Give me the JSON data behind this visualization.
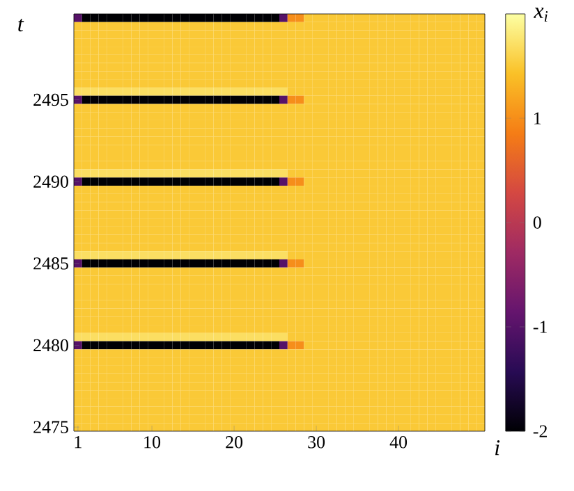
{
  "chart_data": {
    "type": "heatmap",
    "xlabel": "i",
    "ylabel": "t",
    "clabel": "x$_{i}$",
    "clim": [
      -2,
      2
    ],
    "cticks": [
      -2,
      -1,
      0,
      1
    ],
    "categories": [
      "1",
      null,
      null,
      null,
      null,
      null,
      null,
      null,
      null,
      "10",
      null,
      null,
      null,
      null,
      null,
      null,
      null,
      null,
      null,
      "20",
      null,
      null,
      null,
      null,
      null,
      null,
      null,
      null,
      null,
      "30",
      null,
      null,
      null,
      null,
      null,
      null,
      null,
      null,
      null,
      "40",
      null,
      null,
      null,
      null,
      null,
      null,
      null,
      null,
      null,
      null
    ],
    "y_categories": [
      null,
      null,
      null,
      null,
      null,
      null,
      null,
      null,
      null,
      null,
      "2495",
      null,
      null,
      null,
      null,
      null,
      null,
      null,
      null,
      null,
      "2490",
      null,
      null,
      null,
      null,
      null,
      null,
      null,
      null,
      null,
      "2485",
      null,
      null,
      null,
      null,
      null,
      null,
      null,
      null,
      null,
      "2480",
      null,
      null,
      null,
      null,
      null,
      null,
      null,
      null,
      null,
      "2475"
    ],
    "cells": [
      [
        -1,
        -2,
        -2,
        -2,
        -2,
        -2,
        -2,
        -2,
        -2,
        -2,
        -2,
        -2,
        -2,
        -2,
        -2,
        -2,
        -2,
        -2,
        -2,
        -2,
        -2,
        -2,
        -2,
        -2,
        -2,
        -1,
        1.0,
        1.0,
        1.5,
        1.5,
        1.5,
        1.5,
        1.5,
        1.5,
        1.5,
        1.5,
        1.5,
        1.5,
        1.5,
        1.5,
        1.5,
        1.5,
        1.5,
        1.5,
        1.5,
        1.5,
        1.5,
        1.5,
        1.5,
        1.5
      ],
      [
        1.5,
        1.5,
        1.5,
        1.5,
        1.5,
        1.5,
        1.5,
        1.5,
        1.5,
        1.5,
        1.5,
        1.5,
        1.5,
        1.5,
        1.5,
        1.5,
        1.5,
        1.5,
        1.5,
        1.5,
        1.5,
        1.5,
        1.5,
        1.5,
        1.5,
        1.5,
        1.5,
        1.5,
        1.5,
        1.5,
        1.5,
        1.5,
        1.5,
        1.5,
        1.5,
        1.5,
        1.5,
        1.5,
        1.5,
        1.5,
        1.5,
        1.5,
        1.5,
        1.5,
        1.5,
        1.5,
        1.5,
        1.5,
        1.5,
        1.5
      ],
      [
        1.5,
        1.5,
        1.5,
        1.5,
        1.5,
        1.5,
        1.5,
        1.5,
        1.5,
        1.5,
        1.5,
        1.5,
        1.5,
        1.5,
        1.5,
        1.5,
        1.5,
        1.5,
        1.5,
        1.5,
        1.5,
        1.5,
        1.5,
        1.5,
        1.5,
        1.5,
        1.5,
        1.5,
        1.5,
        1.5,
        1.5,
        1.5,
        1.5,
        1.5,
        1.5,
        1.5,
        1.5,
        1.5,
        1.5,
        1.5,
        1.5,
        1.5,
        1.5,
        1.5,
        1.5,
        1.5,
        1.5,
        1.5,
        1.5,
        1.5
      ],
      [
        1.5,
        1.5,
        1.5,
        1.5,
        1.5,
        1.5,
        1.5,
        1.5,
        1.5,
        1.5,
        1.5,
        1.5,
        1.5,
        1.5,
        1.5,
        1.5,
        1.5,
        1.5,
        1.5,
        1.5,
        1.5,
        1.5,
        1.5,
        1.5,
        1.5,
        1.5,
        1.5,
        1.5,
        1.5,
        1.5,
        1.5,
        1.5,
        1.5,
        1.5,
        1.5,
        1.5,
        1.5,
        1.5,
        1.5,
        1.5,
        1.5,
        1.5,
        1.5,
        1.5,
        1.5,
        1.5,
        1.5,
        1.5,
        1.5,
        1.5
      ],
      [
        1.5,
        1.5,
        1.5,
        1.5,
        1.5,
        1.5,
        1.5,
        1.5,
        1.5,
        1.5,
        1.5,
        1.5,
        1.5,
        1.5,
        1.5,
        1.5,
        1.5,
        1.5,
        1.5,
        1.5,
        1.5,
        1.5,
        1.5,
        1.5,
        1.5,
        1.5,
        1.5,
        1.5,
        1.5,
        1.5,
        1.5,
        1.5,
        1.5,
        1.5,
        1.5,
        1.5,
        1.5,
        1.5,
        1.5,
        1.5,
        1.5,
        1.5,
        1.5,
        1.5,
        1.5,
        1.5,
        1.5,
        1.5,
        1.5,
        1.5
      ],
      [
        1.5,
        1.5,
        1.5,
        1.5,
        1.5,
        1.5,
        1.5,
        1.5,
        1.5,
        1.5,
        1.5,
        1.5,
        1.5,
        1.5,
        1.5,
        1.5,
        1.5,
        1.5,
        1.5,
        1.5,
        1.5,
        1.5,
        1.5,
        1.5,
        1.5,
        1.5,
        1.5,
        1.5,
        1.5,
        1.5,
        1.5,
        1.5,
        1.5,
        1.5,
        1.5,
        1.5,
        1.5,
        1.5,
        1.5,
        1.5,
        1.5,
        1.5,
        1.5,
        1.5,
        1.5,
        1.5,
        1.5,
        1.5,
        1.5,
        1.5
      ],
      [
        1.5,
        1.5,
        1.5,
        1.5,
        1.5,
        1.5,
        1.5,
        1.5,
        1.5,
        1.5,
        1.5,
        1.5,
        1.5,
        1.5,
        1.5,
        1.5,
        1.5,
        1.5,
        1.5,
        1.5,
        1.5,
        1.5,
        1.5,
        1.5,
        1.5,
        1.5,
        1.5,
        1.5,
        1.5,
        1.5,
        1.5,
        1.5,
        1.5,
        1.5,
        1.5,
        1.5,
        1.5,
        1.5,
        1.5,
        1.5,
        1.5,
        1.5,
        1.5,
        1.5,
        1.5,
        1.5,
        1.5,
        1.5,
        1.5,
        1.5
      ],
      [
        1.5,
        1.5,
        1.5,
        1.5,
        1.5,
        1.5,
        1.5,
        1.5,
        1.5,
        1.5,
        1.5,
        1.5,
        1.5,
        1.5,
        1.5,
        1.5,
        1.5,
        1.5,
        1.5,
        1.5,
        1.5,
        1.5,
        1.5,
        1.5,
        1.5,
        1.5,
        1.5,
        1.5,
        1.5,
        1.5,
        1.5,
        1.5,
        1.5,
        1.5,
        1.5,
        1.5,
        1.5,
        1.5,
        1.5,
        1.5,
        1.5,
        1.5,
        1.5,
        1.5,
        1.5,
        1.5,
        1.5,
        1.5,
        1.5,
        1.5
      ],
      [
        1.5,
        1.5,
        1.5,
        1.5,
        1.5,
        1.5,
        1.5,
        1.5,
        1.5,
        1.5,
        1.5,
        1.5,
        1.5,
        1.5,
        1.5,
        1.5,
        1.5,
        1.5,
        1.5,
        1.5,
        1.5,
        1.5,
        1.5,
        1.5,
        1.5,
        1.5,
        1.5,
        1.5,
        1.5,
        1.5,
        1.5,
        1.5,
        1.5,
        1.5,
        1.5,
        1.5,
        1.5,
        1.5,
        1.5,
        1.5,
        1.5,
        1.5,
        1.5,
        1.5,
        1.5,
        1.5,
        1.5,
        1.5,
        1.5,
        1.5
      ],
      [
        1.7,
        1.7,
        1.7,
        1.7,
        1.7,
        1.7,
        1.7,
        1.7,
        1.7,
        1.7,
        1.7,
        1.7,
        1.7,
        1.7,
        1.7,
        1.7,
        1.7,
        1.7,
        1.7,
        1.7,
        1.7,
        1.7,
        1.7,
        1.7,
        1.7,
        1.7,
        1.5,
        1.5,
        1.5,
        1.5,
        1.5,
        1.5,
        1.5,
        1.5,
        1.5,
        1.5,
        1.5,
        1.5,
        1.5,
        1.5,
        1.5,
        1.5,
        1.5,
        1.5,
        1.5,
        1.5,
        1.5,
        1.5,
        1.5,
        1.5
      ],
      [
        -1,
        -2,
        -2,
        -2,
        -2,
        -2,
        -2,
        -2,
        -2,
        -2,
        -2,
        -2,
        -2,
        -2,
        -2,
        -2,
        -2,
        -2,
        -2,
        -2,
        -2,
        -2,
        -2,
        -2,
        -2,
        -1,
        1.0,
        1.0,
        1.5,
        1.5,
        1.5,
        1.5,
        1.5,
        1.5,
        1.5,
        1.5,
        1.5,
        1.5,
        1.5,
        1.5,
        1.5,
        1.5,
        1.5,
        1.5,
        1.5,
        1.5,
        1.5,
        1.5,
        1.5,
        1.5
      ],
      [
        1.5,
        1.5,
        1.5,
        1.5,
        1.5,
        1.5,
        1.5,
        1.5,
        1.5,
        1.5,
        1.5,
        1.5,
        1.5,
        1.5,
        1.5,
        1.5,
        1.5,
        1.5,
        1.5,
        1.5,
        1.5,
        1.5,
        1.5,
        1.5,
        1.5,
        1.5,
        1.5,
        1.5,
        1.5,
        1.5,
        1.5,
        1.5,
        1.5,
        1.5,
        1.5,
        1.5,
        1.5,
        1.5,
        1.5,
        1.5,
        1.5,
        1.5,
        1.5,
        1.5,
        1.5,
        1.5,
        1.5,
        1.5,
        1.5,
        1.5
      ],
      [
        1.5,
        1.5,
        1.5,
        1.5,
        1.5,
        1.5,
        1.5,
        1.5,
        1.5,
        1.5,
        1.5,
        1.5,
        1.5,
        1.5,
        1.5,
        1.5,
        1.5,
        1.5,
        1.5,
        1.5,
        1.5,
        1.5,
        1.5,
        1.5,
        1.5,
        1.5,
        1.5,
        1.5,
        1.5,
        1.5,
        1.5,
        1.5,
        1.5,
        1.5,
        1.5,
        1.5,
        1.5,
        1.5,
        1.5,
        1.5,
        1.5,
        1.5,
        1.5,
        1.5,
        1.5,
        1.5,
        1.5,
        1.5,
        1.5,
        1.5
      ],
      [
        1.5,
        1.5,
        1.5,
        1.5,
        1.5,
        1.5,
        1.5,
        1.5,
        1.5,
        1.5,
        1.5,
        1.5,
        1.5,
        1.5,
        1.5,
        1.5,
        1.5,
        1.5,
        1.5,
        1.5,
        1.5,
        1.5,
        1.5,
        1.5,
        1.5,
        1.5,
        1.5,
        1.5,
        1.5,
        1.5,
        1.5,
        1.5,
        1.5,
        1.5,
        1.5,
        1.5,
        1.5,
        1.5,
        1.5,
        1.5,
        1.5,
        1.5,
        1.5,
        1.5,
        1.5,
        1.5,
        1.5,
        1.5,
        1.5,
        1.5
      ],
      [
        1.5,
        1.5,
        1.5,
        1.5,
        1.5,
        1.5,
        1.5,
        1.5,
        1.5,
        1.5,
        1.5,
        1.5,
        1.5,
        1.5,
        1.5,
        1.5,
        1.5,
        1.5,
        1.5,
        1.5,
        1.5,
        1.5,
        1.5,
        1.5,
        1.5,
        1.5,
        1.5,
        1.5,
        1.5,
        1.5,
        1.5,
        1.5,
        1.5,
        1.5,
        1.5,
        1.5,
        1.5,
        1.5,
        1.5,
        1.5,
        1.5,
        1.5,
        1.5,
        1.5,
        1.5,
        1.5,
        1.5,
        1.5,
        1.5,
        1.5
      ],
      [
        1.5,
        1.5,
        1.5,
        1.5,
        1.5,
        1.5,
        1.5,
        1.5,
        1.5,
        1.5,
        1.5,
        1.5,
        1.5,
        1.5,
        1.5,
        1.5,
        1.5,
        1.5,
        1.5,
        1.5,
        1.5,
        1.5,
        1.5,
        1.5,
        1.5,
        1.5,
        1.5,
        1.5,
        1.5,
        1.5,
        1.5,
        1.5,
        1.5,
        1.5,
        1.5,
        1.5,
        1.5,
        1.5,
        1.5,
        1.5,
        1.5,
        1.5,
        1.5,
        1.5,
        1.5,
        1.5,
        1.5,
        1.5,
        1.5,
        1.5
      ],
      [
        1.5,
        1.5,
        1.5,
        1.5,
        1.5,
        1.5,
        1.5,
        1.5,
        1.5,
        1.5,
        1.5,
        1.5,
        1.5,
        1.5,
        1.5,
        1.5,
        1.5,
        1.5,
        1.5,
        1.5,
        1.5,
        1.5,
        1.5,
        1.5,
        1.5,
        1.5,
        1.5,
        1.5,
        1.5,
        1.5,
        1.5,
        1.5,
        1.5,
        1.5,
        1.5,
        1.5,
        1.5,
        1.5,
        1.5,
        1.5,
        1.5,
        1.5,
        1.5,
        1.5,
        1.5,
        1.5,
        1.5,
        1.5,
        1.5,
        1.5
      ],
      [
        1.5,
        1.5,
        1.5,
        1.5,
        1.5,
        1.5,
        1.5,
        1.5,
        1.5,
        1.5,
        1.5,
        1.5,
        1.5,
        1.5,
        1.5,
        1.5,
        1.5,
        1.5,
        1.5,
        1.5,
        1.5,
        1.5,
        1.5,
        1.5,
        1.5,
        1.5,
        1.5,
        1.5,
        1.5,
        1.5,
        1.5,
        1.5,
        1.5,
        1.5,
        1.5,
        1.5,
        1.5,
        1.5,
        1.5,
        1.5,
        1.5,
        1.5,
        1.5,
        1.5,
        1.5,
        1.5,
        1.5,
        1.5,
        1.5,
        1.5
      ],
      [
        1.5,
        1.5,
        1.5,
        1.5,
        1.5,
        1.5,
        1.5,
        1.5,
        1.5,
        1.5,
        1.5,
        1.5,
        1.5,
        1.5,
        1.5,
        1.5,
        1.5,
        1.5,
        1.5,
        1.5,
        1.5,
        1.5,
        1.5,
        1.5,
        1.5,
        1.5,
        1.5,
        1.5,
        1.5,
        1.5,
        1.5,
        1.5,
        1.5,
        1.5,
        1.5,
        1.5,
        1.5,
        1.5,
        1.5,
        1.5,
        1.5,
        1.5,
        1.5,
        1.5,
        1.5,
        1.5,
        1.5,
        1.5,
        1.5,
        1.5
      ],
      [
        1.7,
        1.7,
        1.7,
        1.7,
        1.7,
        1.7,
        1.7,
        1.7,
        1.7,
        1.7,
        1.7,
        1.7,
        1.7,
        1.7,
        1.7,
        1.7,
        1.7,
        1.7,
        1.7,
        1.7,
        1.7,
        1.7,
        1.7,
        1.7,
        1.7,
        1.7,
        1.5,
        1.5,
        1.5,
        1.5,
        1.5,
        1.5,
        1.5,
        1.5,
        1.5,
        1.5,
        1.5,
        1.5,
        1.5,
        1.5,
        1.5,
        1.5,
        1.5,
        1.5,
        1.5,
        1.5,
        1.5,
        1.5,
        1.5,
        1.5
      ],
      [
        -1,
        -2,
        -2,
        -2,
        -2,
        -2,
        -2,
        -2,
        -2,
        -2,
        -2,
        -2,
        -2,
        -2,
        -2,
        -2,
        -2,
        -2,
        -2,
        -2,
        -2,
        -2,
        -2,
        -2,
        -2,
        -1,
        1.0,
        1.0,
        1.5,
        1.5,
        1.5,
        1.5,
        1.5,
        1.5,
        1.5,
        1.5,
        1.5,
        1.5,
        1.5,
        1.5,
        1.5,
        1.5,
        1.5,
        1.5,
        1.5,
        1.5,
        1.5,
        1.5,
        1.5,
        1.5
      ],
      [
        1.5,
        1.5,
        1.5,
        1.5,
        1.5,
        1.5,
        1.5,
        1.5,
        1.5,
        1.5,
        1.5,
        1.5,
        1.5,
        1.5,
        1.5,
        1.5,
        1.5,
        1.5,
        1.5,
        1.5,
        1.5,
        1.5,
        1.5,
        1.5,
        1.5,
        1.5,
        1.5,
        1.5,
        1.5,
        1.5,
        1.5,
        1.5,
        1.5,
        1.5,
        1.5,
        1.5,
        1.5,
        1.5,
        1.5,
        1.5,
        1.5,
        1.5,
        1.5,
        1.5,
        1.5,
        1.5,
        1.5,
        1.5,
        1.5,
        1.5
      ],
      [
        1.5,
        1.5,
        1.5,
        1.5,
        1.5,
        1.5,
        1.5,
        1.5,
        1.5,
        1.5,
        1.5,
        1.5,
        1.5,
        1.5,
        1.5,
        1.5,
        1.5,
        1.5,
        1.5,
        1.5,
        1.5,
        1.5,
        1.5,
        1.5,
        1.5,
        1.5,
        1.5,
        1.5,
        1.5,
        1.5,
        1.5,
        1.5,
        1.5,
        1.5,
        1.5,
        1.5,
        1.5,
        1.5,
        1.5,
        1.5,
        1.5,
        1.5,
        1.5,
        1.5,
        1.5,
        1.5,
        1.5,
        1.5,
        1.5,
        1.5
      ],
      [
        1.5,
        1.5,
        1.5,
        1.5,
        1.5,
        1.5,
        1.5,
        1.5,
        1.5,
        1.5,
        1.5,
        1.5,
        1.5,
        1.5,
        1.5,
        1.5,
        1.5,
        1.5,
        1.5,
        1.5,
        1.5,
        1.5,
        1.5,
        1.5,
        1.5,
        1.5,
        1.5,
        1.5,
        1.5,
        1.5,
        1.5,
        1.5,
        1.5,
        1.5,
        1.5,
        1.5,
        1.5,
        1.5,
        1.5,
        1.5,
        1.5,
        1.5,
        1.5,
        1.5,
        1.5,
        1.5,
        1.5,
        1.5,
        1.5,
        1.5
      ],
      [
        1.5,
        1.5,
        1.5,
        1.5,
        1.5,
        1.5,
        1.5,
        1.5,
        1.5,
        1.5,
        1.5,
        1.5,
        1.5,
        1.5,
        1.5,
        1.5,
        1.5,
        1.5,
        1.5,
        1.5,
        1.5,
        1.5,
        1.5,
        1.5,
        1.5,
        1.5,
        1.5,
        1.5,
        1.5,
        1.5,
        1.5,
        1.5,
        1.5,
        1.5,
        1.5,
        1.5,
        1.5,
        1.5,
        1.5,
        1.5,
        1.5,
        1.5,
        1.5,
        1.5,
        1.5,
        1.5,
        1.5,
        1.5,
        1.5,
        1.5
      ],
      [
        1.5,
        1.5,
        1.5,
        1.5,
        1.5,
        1.5,
        1.5,
        1.5,
        1.5,
        1.5,
        1.5,
        1.5,
        1.5,
        1.5,
        1.5,
        1.5,
        1.5,
        1.5,
        1.5,
        1.5,
        1.5,
        1.5,
        1.5,
        1.5,
        1.5,
        1.5,
        1.5,
        1.5,
        1.5,
        1.5,
        1.5,
        1.5,
        1.5,
        1.5,
        1.5,
        1.5,
        1.5,
        1.5,
        1.5,
        1.5,
        1.5,
        1.5,
        1.5,
        1.5,
        1.5,
        1.5,
        1.5,
        1.5,
        1.5,
        1.5
      ],
      [
        1.5,
        1.5,
        1.5,
        1.5,
        1.5,
        1.5,
        1.5,
        1.5,
        1.5,
        1.5,
        1.5,
        1.5,
        1.5,
        1.5,
        1.5,
        1.5,
        1.5,
        1.5,
        1.5,
        1.5,
        1.5,
        1.5,
        1.5,
        1.5,
        1.5,
        1.5,
        1.5,
        1.5,
        1.5,
        1.5,
        1.5,
        1.5,
        1.5,
        1.5,
        1.5,
        1.5,
        1.5,
        1.5,
        1.5,
        1.5,
        1.5,
        1.5,
        1.5,
        1.5,
        1.5,
        1.5,
        1.5,
        1.5,
        1.5,
        1.5
      ],
      [
        1.5,
        1.5,
        1.5,
        1.5,
        1.5,
        1.5,
        1.5,
        1.5,
        1.5,
        1.5,
        1.5,
        1.5,
        1.5,
        1.5,
        1.5,
        1.5,
        1.5,
        1.5,
        1.5,
        1.5,
        1.5,
        1.5,
        1.5,
        1.5,
        1.5,
        1.5,
        1.5,
        1.5,
        1.5,
        1.5,
        1.5,
        1.5,
        1.5,
        1.5,
        1.5,
        1.5,
        1.5,
        1.5,
        1.5,
        1.5,
        1.5,
        1.5,
        1.5,
        1.5,
        1.5,
        1.5,
        1.5,
        1.5,
        1.5,
        1.5
      ],
      [
        1.5,
        1.5,
        1.5,
        1.5,
        1.5,
        1.5,
        1.5,
        1.5,
        1.5,
        1.5,
        1.5,
        1.5,
        1.5,
        1.5,
        1.5,
        1.5,
        1.5,
        1.5,
        1.5,
        1.5,
        1.5,
        1.5,
        1.5,
        1.5,
        1.5,
        1.5,
        1.5,
        1.5,
        1.5,
        1.5,
        1.5,
        1.5,
        1.5,
        1.5,
        1.5,
        1.5,
        1.5,
        1.5,
        1.5,
        1.5,
        1.5,
        1.5,
        1.5,
        1.5,
        1.5,
        1.5,
        1.5,
        1.5,
        1.5,
        1.5
      ],
      [
        1.7,
        1.7,
        1.7,
        1.7,
        1.7,
        1.7,
        1.7,
        1.7,
        1.7,
        1.7,
        1.7,
        1.7,
        1.7,
        1.7,
        1.7,
        1.7,
        1.7,
        1.7,
        1.7,
        1.7,
        1.7,
        1.7,
        1.7,
        1.7,
        1.7,
        1.7,
        1.5,
        1.5,
        1.5,
        1.5,
        1.5,
        1.5,
        1.5,
        1.5,
        1.5,
        1.5,
        1.5,
        1.5,
        1.5,
        1.5,
        1.5,
        1.5,
        1.5,
        1.5,
        1.5,
        1.5,
        1.5,
        1.5,
        1.5,
        1.5
      ],
      [
        -1,
        -2,
        -2,
        -2,
        -2,
        -2,
        -2,
        -2,
        -2,
        -2,
        -2,
        -2,
        -2,
        -2,
        -2,
        -2,
        -2,
        -2,
        -2,
        -2,
        -2,
        -2,
        -2,
        -2,
        -2,
        -1,
        1.0,
        1.0,
        1.5,
        1.5,
        1.5,
        1.5,
        1.5,
        1.5,
        1.5,
        1.5,
        1.5,
        1.5,
        1.5,
        1.5,
        1.5,
        1.5,
        1.5,
        1.5,
        1.5,
        1.5,
        1.5,
        1.5,
        1.5,
        1.5
      ],
      [
        1.5,
        1.5,
        1.5,
        1.5,
        1.5,
        1.5,
        1.5,
        1.5,
        1.5,
        1.5,
        1.5,
        1.5,
        1.5,
        1.5,
        1.5,
        1.5,
        1.5,
        1.5,
        1.5,
        1.5,
        1.5,
        1.5,
        1.5,
        1.5,
        1.5,
        1.5,
        1.5,
        1.5,
        1.5,
        1.5,
        1.5,
        1.5,
        1.5,
        1.5,
        1.5,
        1.5,
        1.5,
        1.5,
        1.5,
        1.5,
        1.5,
        1.5,
        1.5,
        1.5,
        1.5,
        1.5,
        1.5,
        1.5,
        1.5,
        1.5
      ],
      [
        1.5,
        1.5,
        1.5,
        1.5,
        1.5,
        1.5,
        1.5,
        1.5,
        1.5,
        1.5,
        1.5,
        1.5,
        1.5,
        1.5,
        1.5,
        1.5,
        1.5,
        1.5,
        1.5,
        1.5,
        1.5,
        1.5,
        1.5,
        1.5,
        1.5,
        1.5,
        1.5,
        1.5,
        1.5,
        1.5,
        1.5,
        1.5,
        1.5,
        1.5,
        1.5,
        1.5,
        1.5,
        1.5,
        1.5,
        1.5,
        1.5,
        1.5,
        1.5,
        1.5,
        1.5,
        1.5,
        1.5,
        1.5,
        1.5,
        1.5
      ],
      [
        1.5,
        1.5,
        1.5,
        1.5,
        1.5,
        1.5,
        1.5,
        1.5,
        1.5,
        1.5,
        1.5,
        1.5,
        1.5,
        1.5,
        1.5,
        1.5,
        1.5,
        1.5,
        1.5,
        1.5,
        1.5,
        1.5,
        1.5,
        1.5,
        1.5,
        1.5,
        1.5,
        1.5,
        1.5,
        1.5,
        1.5,
        1.5,
        1.5,
        1.5,
        1.5,
        1.5,
        1.5,
        1.5,
        1.5,
        1.5,
        1.5,
        1.5,
        1.5,
        1.5,
        1.5,
        1.5,
        1.5,
        1.5,
        1.5,
        1.5
      ],
      [
        1.5,
        1.5,
        1.5,
        1.5,
        1.5,
        1.5,
        1.5,
        1.5,
        1.5,
        1.5,
        1.5,
        1.5,
        1.5,
        1.5,
        1.5,
        1.5,
        1.5,
        1.5,
        1.5,
        1.5,
        1.5,
        1.5,
        1.5,
        1.5,
        1.5,
        1.5,
        1.5,
        1.5,
        1.5,
        1.5,
        1.5,
        1.5,
        1.5,
        1.5,
        1.5,
        1.5,
        1.5,
        1.5,
        1.5,
        1.5,
        1.5,
        1.5,
        1.5,
        1.5,
        1.5,
        1.5,
        1.5,
        1.5,
        1.5,
        1.5
      ],
      [
        1.5,
        1.5,
        1.5,
        1.5,
        1.5,
        1.5,
        1.5,
        1.5,
        1.5,
        1.5,
        1.5,
        1.5,
        1.5,
        1.5,
        1.5,
        1.5,
        1.5,
        1.5,
        1.5,
        1.5,
        1.5,
        1.5,
        1.5,
        1.5,
        1.5,
        1.5,
        1.5,
        1.5,
        1.5,
        1.5,
        1.5,
        1.5,
        1.5,
        1.5,
        1.5,
        1.5,
        1.5,
        1.5,
        1.5,
        1.5,
        1.5,
        1.5,
        1.5,
        1.5,
        1.5,
        1.5,
        1.5,
        1.5,
        1.5,
        1.5
      ],
      [
        1.5,
        1.5,
        1.5,
        1.5,
        1.5,
        1.5,
        1.5,
        1.5,
        1.5,
        1.5,
        1.5,
        1.5,
        1.5,
        1.5,
        1.5,
        1.5,
        1.5,
        1.5,
        1.5,
        1.5,
        1.5,
        1.5,
        1.5,
        1.5,
        1.5,
        1.5,
        1.5,
        1.5,
        1.5,
        1.5,
        1.5,
        1.5,
        1.5,
        1.5,
        1.5,
        1.5,
        1.5,
        1.5,
        1.5,
        1.5,
        1.5,
        1.5,
        1.5,
        1.5,
        1.5,
        1.5,
        1.5,
        1.5,
        1.5,
        1.5
      ],
      [
        1.5,
        1.5,
        1.5,
        1.5,
        1.5,
        1.5,
        1.5,
        1.5,
        1.5,
        1.5,
        1.5,
        1.5,
        1.5,
        1.5,
        1.5,
        1.5,
        1.5,
        1.5,
        1.5,
        1.5,
        1.5,
        1.5,
        1.5,
        1.5,
        1.5,
        1.5,
        1.5,
        1.5,
        1.5,
        1.5,
        1.5,
        1.5,
        1.5,
        1.5,
        1.5,
        1.5,
        1.5,
        1.5,
        1.5,
        1.5,
        1.5,
        1.5,
        1.5,
        1.5,
        1.5,
        1.5,
        1.5,
        1.5,
        1.5,
        1.5
      ],
      [
        1.5,
        1.5,
        1.5,
        1.5,
        1.5,
        1.5,
        1.5,
        1.5,
        1.5,
        1.5,
        1.5,
        1.5,
        1.5,
        1.5,
        1.5,
        1.5,
        1.5,
        1.5,
        1.5,
        1.5,
        1.5,
        1.5,
        1.5,
        1.5,
        1.5,
        1.5,
        1.5,
        1.5,
        1.5,
        1.5,
        1.5,
        1.5,
        1.5,
        1.5,
        1.5,
        1.5,
        1.5,
        1.5,
        1.5,
        1.5,
        1.5,
        1.5,
        1.5,
        1.5,
        1.5,
        1.5,
        1.5,
        1.5,
        1.5,
        1.5
      ],
      [
        1.7,
        1.7,
        1.7,
        1.7,
        1.7,
        1.7,
        1.7,
        1.7,
        1.7,
        1.7,
        1.7,
        1.7,
        1.7,
        1.7,
        1.7,
        1.7,
        1.7,
        1.7,
        1.7,
        1.7,
        1.7,
        1.7,
        1.7,
        1.7,
        1.7,
        1.7,
        1.5,
        1.5,
        1.5,
        1.5,
        1.5,
        1.5,
        1.5,
        1.5,
        1.5,
        1.5,
        1.5,
        1.5,
        1.5,
        1.5,
        1.5,
        1.5,
        1.5,
        1.5,
        1.5,
        1.5,
        1.5,
        1.5,
        1.5,
        1.5
      ],
      [
        -1,
        -2,
        -2,
        -2,
        -2,
        -2,
        -2,
        -2,
        -2,
        -2,
        -2,
        -2,
        -2,
        -2,
        -2,
        -2,
        -2,
        -2,
        -2,
        -2,
        -2,
        -2,
        -2,
        -2,
        -2,
        -1,
        1.0,
        1.0,
        1.5,
        1.5,
        1.5,
        1.5,
        1.5,
        1.5,
        1.5,
        1.5,
        1.5,
        1.5,
        1.5,
        1.5,
        1.5,
        1.5,
        1.5,
        1.5,
        1.5,
        1.5,
        1.5,
        1.5,
        1.5,
        1.5
      ],
      [
        1.5,
        1.5,
        1.5,
        1.5,
        1.5,
        1.5,
        1.5,
        1.5,
        1.5,
        1.5,
        1.5,
        1.5,
        1.5,
        1.5,
        1.5,
        1.5,
        1.5,
        1.5,
        1.5,
        1.5,
        1.5,
        1.5,
        1.5,
        1.5,
        1.5,
        1.5,
        1.5,
        1.5,
        1.5,
        1.5,
        1.5,
        1.5,
        1.5,
        1.5,
        1.5,
        1.5,
        1.5,
        1.5,
        1.5,
        1.5,
        1.5,
        1.5,
        1.5,
        1.5,
        1.5,
        1.5,
        1.5,
        1.5,
        1.5,
        1.5
      ],
      [
        1.5,
        1.5,
        1.5,
        1.5,
        1.5,
        1.5,
        1.5,
        1.5,
        1.5,
        1.5,
        1.5,
        1.5,
        1.5,
        1.5,
        1.5,
        1.5,
        1.5,
        1.5,
        1.5,
        1.5,
        1.5,
        1.5,
        1.5,
        1.5,
        1.5,
        1.5,
        1.5,
        1.5,
        1.5,
        1.5,
        1.5,
        1.5,
        1.5,
        1.5,
        1.5,
        1.5,
        1.5,
        1.5,
        1.5,
        1.5,
        1.5,
        1.5,
        1.5,
        1.5,
        1.5,
        1.5,
        1.5,
        1.5,
        1.5,
        1.5
      ],
      [
        1.5,
        1.5,
        1.5,
        1.5,
        1.5,
        1.5,
        1.5,
        1.5,
        1.5,
        1.5,
        1.5,
        1.5,
        1.5,
        1.5,
        1.5,
        1.5,
        1.5,
        1.5,
        1.5,
        1.5,
        1.5,
        1.5,
        1.5,
        1.5,
        1.5,
        1.5,
        1.5,
        1.5,
        1.5,
        1.5,
        1.5,
        1.5,
        1.5,
        1.5,
        1.5,
        1.5,
        1.5,
        1.5,
        1.5,
        1.5,
        1.5,
        1.5,
        1.5,
        1.5,
        1.5,
        1.5,
        1.5,
        1.5,
        1.5,
        1.5
      ],
      [
        1.5,
        1.5,
        1.5,
        1.5,
        1.5,
        1.5,
        1.5,
        1.5,
        1.5,
        1.5,
        1.5,
        1.5,
        1.5,
        1.5,
        1.5,
        1.5,
        1.5,
        1.5,
        1.5,
        1.5,
        1.5,
        1.5,
        1.5,
        1.5,
        1.5,
        1.5,
        1.5,
        1.5,
        1.5,
        1.5,
        1.5,
        1.5,
        1.5,
        1.5,
        1.5,
        1.5,
        1.5,
        1.5,
        1.5,
        1.5,
        1.5,
        1.5,
        1.5,
        1.5,
        1.5,
        1.5,
        1.5,
        1.5,
        1.5,
        1.5
      ],
      [
        1.5,
        1.5,
        1.5,
        1.5,
        1.5,
        1.5,
        1.5,
        1.5,
        1.5,
        1.5,
        1.5,
        1.5,
        1.5,
        1.5,
        1.5,
        1.5,
        1.5,
        1.5,
        1.5,
        1.5,
        1.5,
        1.5,
        1.5,
        1.5,
        1.5,
        1.5,
        1.5,
        1.5,
        1.5,
        1.5,
        1.5,
        1.5,
        1.5,
        1.5,
        1.5,
        1.5,
        1.5,
        1.5,
        1.5,
        1.5,
        1.5,
        1.5,
        1.5,
        1.5,
        1.5,
        1.5,
        1.5,
        1.5,
        1.5,
        1.5
      ],
      [
        1.5,
        1.5,
        1.5,
        1.5,
        1.5,
        1.5,
        1.5,
        1.5,
        1.5,
        1.5,
        1.5,
        1.5,
        1.5,
        1.5,
        1.5,
        1.5,
        1.5,
        1.5,
        1.5,
        1.5,
        1.5,
        1.5,
        1.5,
        1.5,
        1.5,
        1.5,
        1.5,
        1.5,
        1.5,
        1.5,
        1.5,
        1.5,
        1.5,
        1.5,
        1.5,
        1.5,
        1.5,
        1.5,
        1.5,
        1.5,
        1.5,
        1.5,
        1.5,
        1.5,
        1.5,
        1.5,
        1.5,
        1.5,
        1.5,
        1.5
      ],
      [
        1.5,
        1.5,
        1.5,
        1.5,
        1.5,
        1.5,
        1.5,
        1.5,
        1.5,
        1.5,
        1.5,
        1.5,
        1.5,
        1.5,
        1.5,
        1.5,
        1.5,
        1.5,
        1.5,
        1.5,
        1.5,
        1.5,
        1.5,
        1.5,
        1.5,
        1.5,
        1.5,
        1.5,
        1.5,
        1.5,
        1.5,
        1.5,
        1.5,
        1.5,
        1.5,
        1.5,
        1.5,
        1.5,
        1.5,
        1.5,
        1.5,
        1.5,
        1.5,
        1.5,
        1.5,
        1.5,
        1.5,
        1.5,
        1.5,
        1.5
      ],
      [
        1.5,
        1.5,
        1.5,
        1.5,
        1.5,
        1.5,
        1.5,
        1.5,
        1.5,
        1.5,
        1.5,
        1.5,
        1.5,
        1.5,
        1.5,
        1.5,
        1.5,
        1.5,
        1.5,
        1.5,
        1.5,
        1.5,
        1.5,
        1.5,
        1.5,
        1.5,
        1.5,
        1.5,
        1.5,
        1.5,
        1.5,
        1.5,
        1.5,
        1.5,
        1.5,
        1.5,
        1.5,
        1.5,
        1.5,
        1.5,
        1.5,
        1.5,
        1.5,
        1.5,
        1.5,
        1.5,
        1.5,
        1.5,
        1.5,
        1.5
      ],
      [
        1.5,
        1.5,
        1.5,
        1.5,
        1.5,
        1.5,
        1.5,
        1.5,
        1.5,
        1.5,
        1.5,
        1.5,
        1.5,
        1.5,
        1.5,
        1.5,
        1.5,
        1.5,
        1.5,
        1.5,
        1.5,
        1.5,
        1.5,
        1.5,
        1.5,
        1.5,
        1.5,
        1.5,
        1.5,
        1.5,
        1.5,
        1.5,
        1.5,
        1.5,
        1.5,
        1.5,
        1.5,
        1.5,
        1.5,
        1.5,
        1.5,
        1.5,
        1.5,
        1.5,
        1.5,
        1.5,
        1.5,
        1.5,
        1.5,
        1.5
      ],
      [
        1.5,
        1.5,
        1.5,
        1.5,
        1.5,
        1.5,
        1.5,
        1.5,
        1.5,
        1.5,
        1.5,
        1.5,
        1.5,
        1.5,
        1.5,
        1.5,
        1.5,
        1.5,
        1.5,
        1.5,
        1.5,
        1.5,
        1.5,
        1.5,
        1.5,
        1.5,
        1.5,
        1.5,
        1.5,
        1.5,
        1.5,
        1.5,
        1.5,
        1.5,
        1.5,
        1.5,
        1.5,
        1.5,
        1.5,
        1.5,
        1.5,
        1.5,
        1.5,
        1.5,
        1.5,
        1.5,
        1.5,
        1.5,
        1.5,
        1.5
      ]
    ]
  }
}
